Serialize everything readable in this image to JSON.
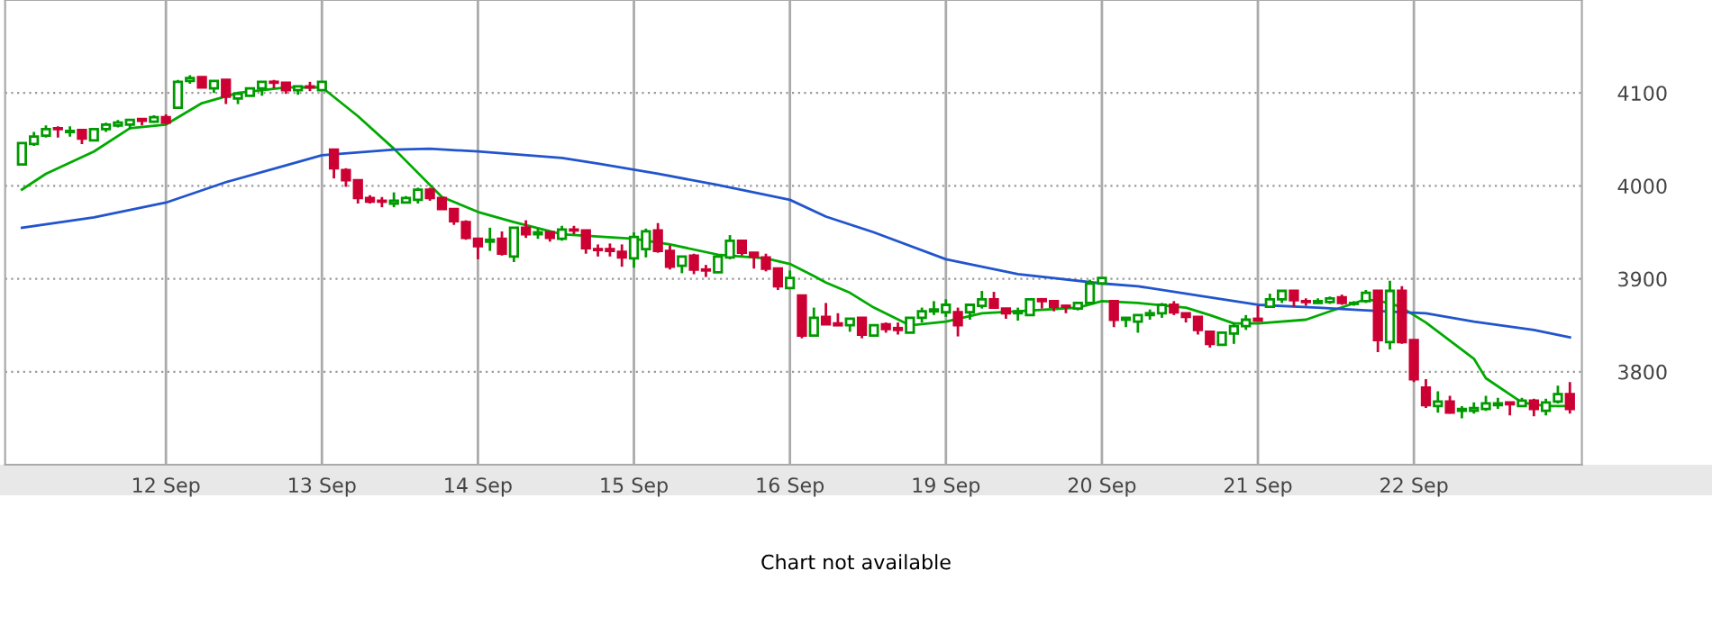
{
  "chart_data": {
    "type": "candlestick",
    "ylim": [
      3700,
      4200
    ],
    "categories": [
      null,
      null,
      null,
      null,
      null,
      null,
      null,
      null,
      null,
      null,
      null,
      null,
      "12 Sep",
      null,
      null,
      null,
      null,
      null,
      null,
      null,
      null,
      null,
      null,
      null,
      null,
      "13 Sep",
      null,
      null,
      null,
      null,
      null,
      null,
      null,
      null,
      null,
      null,
      null,
      null,
      "14 Sep",
      null,
      null,
      null,
      null,
      null,
      null,
      null,
      null,
      null,
      null,
      null,
      null,
      "15 Sep",
      null,
      null,
      null,
      null,
      null,
      null,
      null,
      null,
      null,
      null,
      null,
      null,
      "16 Sep",
      null,
      null,
      null,
      null,
      null,
      null,
      null,
      null,
      null,
      null,
      null,
      null,
      "19 Sep",
      null,
      null,
      null,
      null,
      null,
      null,
      null,
      null,
      null,
      null,
      null,
      null,
      "20 Sep",
      null,
      null,
      null,
      null,
      null,
      null,
      null,
      null,
      null,
      null,
      null,
      null,
      "21 Sep",
      null,
      null,
      null,
      null,
      null,
      null,
      null,
      null,
      null,
      null,
      null,
      null,
      "22 Sep",
      null,
      null,
      null,
      null,
      null,
      null,
      null,
      null,
      null,
      null,
      null,
      null,
      null
    ],
    "yticks": [
      3800,
      3900,
      4000,
      4100
    ],
    "grid": true,
    "annotations": [
      "Chart not available"
    ],
    "series": [
      {
        "type": "candlestick",
        "ohlc": [
          [
            4023,
            4047,
            4022,
            4046
          ],
          [
            4045,
            4058,
            4043,
            4053
          ],
          [
            4054,
            4065,
            4052,
            4061
          ],
          [
            4062,
            4064,
            4052,
            4061
          ],
          [
            4058,
            4064,
            4053,
            4059
          ],
          [
            4060,
            4060,
            4045,
            4051
          ],
          [
            4049,
            4061,
            4048,
            4061
          ],
          [
            4061,
            4068,
            4058,
            4066
          ],
          [
            4065,
            4071,
            4063,
            4068
          ],
          [
            4066,
            4071,
            4061,
            4071
          ],
          [
            4072,
            4072,
            4065,
            4070
          ],
          [
            4069,
            4076,
            4068,
            4074
          ],
          [
            4074,
            4077,
            4066,
            4068
          ],
          [
            4084,
            4114,
            4083,
            4112
          ],
          [
            4113,
            4119,
            4110,
            4116
          ],
          [
            4117,
            4117,
            4105,
            4106
          ],
          [
            4105,
            4113,
            4100,
            4113
          ],
          [
            4114,
            4114,
            4088,
            4096
          ],
          [
            4094,
            4100,
            4088,
            4099
          ],
          [
            4097,
            4105,
            4097,
            4105
          ],
          [
            4105,
            4112,
            4097,
            4112
          ],
          [
            4112,
            4114,
            4105,
            4111
          ],
          [
            4111,
            4111,
            4099,
            4103
          ],
          [
            4103,
            4107,
            4098,
            4107
          ],
          [
            4107,
            4112,
            4102,
            4106
          ],
          [
            4103,
            4112,
            4103,
            4112
          ],
          [
            4039,
            4039,
            4008,
            4019
          ],
          [
            4017,
            4019,
            3999,
            4006
          ],
          [
            4006,
            4006,
            3981,
            3987
          ],
          [
            3987,
            3990,
            3981,
            3983
          ],
          [
            3984,
            3988,
            3977,
            3983
          ],
          [
            3981,
            3993,
            3977,
            3984
          ],
          [
            3982,
            3989,
            3981,
            3987
          ],
          [
            3985,
            3998,
            3981,
            3996
          ],
          [
            3996,
            3998,
            3984,
            3987
          ],
          [
            3987,
            3987,
            3975,
            3975
          ],
          [
            3975,
            3975,
            3958,
            3962
          ],
          [
            3961,
            3963,
            3942,
            3944
          ],
          [
            3943,
            3944,
            3921,
            3935
          ],
          [
            3940,
            3955,
            3930,
            3942
          ],
          [
            3943,
            3951,
            3925,
            3927
          ],
          [
            3924,
            3955,
            3918,
            3955
          ],
          [
            3955,
            3963,
            3944,
            3948
          ],
          [
            3948,
            3954,
            3943,
            3950
          ],
          [
            3950,
            3950,
            3940,
            3944
          ],
          [
            3943,
            3957,
            3941,
            3953
          ],
          [
            3953,
            3957,
            3948,
            3952
          ],
          [
            3952,
            3952,
            3927,
            3933
          ],
          [
            3932,
            3937,
            3924,
            3931
          ],
          [
            3932,
            3938,
            3924,
            3930
          ],
          [
            3929,
            3937,
            3913,
            3923
          ],
          [
            3922,
            3950,
            3912,
            3945
          ],
          [
            3932,
            3954,
            3923,
            3951
          ],
          [
            3952,
            3960,
            3928,
            3930
          ],
          [
            3930,
            3936,
            3910,
            3913
          ],
          [
            3914,
            3924,
            3906,
            3924
          ],
          [
            3925,
            3927,
            3905,
            3910
          ],
          [
            3910,
            3915,
            3902,
            3909
          ],
          [
            3907,
            3926,
            3907,
            3924
          ],
          [
            3923,
            3947,
            3921,
            3941
          ],
          [
            3941,
            3941,
            3925,
            3928
          ],
          [
            3928,
            3928,
            3911,
            3924
          ],
          [
            3923,
            3927,
            3908,
            3911
          ],
          [
            3911,
            3911,
            3888,
            3892
          ],
          [
            3890,
            3909,
            3890,
            3901
          ],
          [
            3882,
            3882,
            3836,
            3839
          ],
          [
            3839,
            3869,
            3839,
            3858
          ],
          [
            3859,
            3874,
            3851,
            3851
          ],
          [
            3852,
            3863,
            3850,
            3850
          ],
          [
            3850,
            3857,
            3843,
            3857
          ],
          [
            3858,
            3858,
            3836,
            3840
          ],
          [
            3839,
            3850,
            3839,
            3850
          ],
          [
            3851,
            3853,
            3842,
            3846
          ],
          [
            3847,
            3853,
            3840,
            3845
          ],
          [
            3842,
            3858,
            3842,
            3858
          ],
          [
            3858,
            3869,
            3853,
            3865
          ],
          [
            3865,
            3876,
            3861,
            3867
          ],
          [
            3864,
            3878,
            3859,
            3872
          ],
          [
            3864,
            3869,
            3838,
            3850
          ],
          [
            3864,
            3872,
            3856,
            3872
          ],
          [
            3871,
            3887,
            3868,
            3878
          ],
          [
            3878,
            3886,
            3868,
            3869
          ],
          [
            3868,
            3868,
            3857,
            3863
          ],
          [
            3863,
            3869,
            3855,
            3865
          ],
          [
            3861,
            3878,
            3861,
            3878
          ],
          [
            3878,
            3878,
            3868,
            3876
          ],
          [
            3876,
            3876,
            3865,
            3870
          ],
          [
            3871,
            3872,
            3863,
            3870
          ],
          [
            3868,
            3874,
            3866,
            3874
          ],
          [
            3874,
            3899,
            3874,
            3895
          ],
          [
            3895,
            3901,
            3895,
            3901
          ],
          [
            3876,
            3876,
            3848,
            3856
          ],
          [
            3856,
            3859,
            3848,
            3858
          ],
          [
            3854,
            3861,
            3842,
            3861
          ],
          [
            3861,
            3867,
            3856,
            3863
          ],
          [
            3863,
            3874,
            3858,
            3872
          ],
          [
            3872,
            3876,
            3861,
            3864
          ],
          [
            3863,
            3863,
            3853,
            3859
          ],
          [
            3859,
            3859,
            3840,
            3845
          ],
          [
            3843,
            3843,
            3826,
            3830
          ],
          [
            3829,
            3842,
            3829,
            3842
          ],
          [
            3841,
            3853,
            3830,
            3849
          ],
          [
            3849,
            3861,
            3845,
            3856
          ],
          [
            3857,
            3871,
            3855,
            3855
          ],
          [
            3870,
            3884,
            3869,
            3878
          ],
          [
            3878,
            3888,
            3874,
            3887
          ],
          [
            3887,
            3887,
            3870,
            3877
          ],
          [
            3876,
            3879,
            3871,
            3875
          ],
          [
            3874,
            3879,
            3874,
            3876
          ],
          [
            3875,
            3881,
            3873,
            3879
          ],
          [
            3880,
            3883,
            3872,
            3874
          ],
          [
            3873,
            3876,
            3871,
            3874
          ],
          [
            3876,
            3888,
            3874,
            3885
          ],
          [
            3887,
            3888,
            3821,
            3834
          ],
          [
            3832,
            3898,
            3824,
            3887
          ],
          [
            3887,
            3892,
            3830,
            3832
          ],
          [
            3834,
            3834,
            3789,
            3792
          ],
          [
            3783,
            3792,
            3761,
            3764
          ],
          [
            3763,
            3779,
            3756,
            3768
          ],
          [
            3768,
            3774,
            3755,
            3756
          ],
          [
            3758,
            3763,
            3750,
            3760
          ],
          [
            3758,
            3767,
            3755,
            3761
          ],
          [
            3760,
            3774,
            3758,
            3766
          ],
          [
            3764,
            3772,
            3760,
            3766
          ],
          [
            3767,
            3767,
            3753,
            3765
          ],
          [
            3763,
            3772,
            3762,
            3769
          ],
          [
            3769,
            3771,
            3752,
            3760
          ],
          [
            3758,
            3771,
            3753,
            3767
          ],
          [
            3768,
            3785,
            3766,
            3776
          ],
          [
            3776,
            3789,
            3755,
            3760
          ]
        ],
        "colors": [
          "#009900",
          "#009900",
          "#009900",
          "#cc0033",
          "#009900",
          "#cc0033",
          "#009900",
          "#009900",
          "#009900",
          "#009900",
          "#cc0033",
          "#009900",
          "#cc0033",
          "#009900",
          "#009900",
          "#cc0033",
          "#009900",
          "#cc0033",
          "#009900",
          "#009900",
          "#009900",
          "#cc0033",
          "#cc0033",
          "#009900",
          "#cc0033",
          "#009900",
          "#cc0033",
          "#cc0033",
          "#cc0033",
          "#cc0033",
          "#cc0033",
          "#009900",
          "#009900",
          "#009900",
          "#cc0033",
          "#cc0033",
          "#cc0033",
          "#cc0033",
          "#cc0033",
          "#009900",
          "#cc0033",
          "#009900",
          "#cc0033",
          "#009900",
          "#cc0033",
          "#009900",
          "#cc0033",
          "#cc0033",
          "#cc0033",
          "#cc0033",
          "#cc0033",
          "#009900",
          "#009900",
          "#cc0033",
          "#cc0033",
          "#009900",
          "#cc0033",
          "#cc0033",
          "#009900",
          "#009900",
          "#cc0033",
          "#cc0033",
          "#cc0033",
          "#cc0033",
          "#009900",
          "#cc0033",
          "#009900",
          "#cc0033",
          "#cc0033",
          "#009900",
          "#cc0033",
          "#009900",
          "#cc0033",
          "#cc0033",
          "#009900",
          "#009900",
          "#009900",
          "#009900",
          "#cc0033",
          "#009900",
          "#009900",
          "#cc0033",
          "#cc0033",
          "#009900",
          "#009900",
          "#cc0033",
          "#cc0033",
          "#cc0033",
          "#009900",
          "#009900",
          "#009900",
          "#cc0033",
          "#009900",
          "#009900",
          "#009900",
          "#009900",
          "#cc0033",
          "#cc0033",
          "#cc0033",
          "#cc0033",
          "#009900",
          "#009900",
          "#009900",
          "#cc0033",
          "#009900",
          "#009900",
          "#cc0033",
          "#cc0033",
          "#009900",
          "#009900",
          "#cc0033",
          "#009900",
          "#009900",
          "#cc0033",
          "#009900",
          "#cc0033",
          "#cc0033",
          "#cc0033",
          "#009900",
          "#cc0033",
          "#009900",
          "#009900",
          "#009900",
          "#009900",
          "#cc0033",
          "#009900",
          "#cc0033",
          "#009900",
          "#009900",
          "#cc0033"
        ]
      },
      {
        "type": "line",
        "color": "#00aa00",
        "values": [
          3996,
          null,
          4013,
          null,
          null,
          null,
          4037,
          null,
          null,
          4062,
          null,
          null,
          4066,
          null,
          null,
          4089,
          null,
          null,
          4100,
          null,
          null,
          null,
          4106,
          null,
          null,
          4106,
          null,
          null,
          4075,
          null,
          null,
          4040,
          null,
          null,
          null,
          3988,
          null,
          null,
          3972,
          null,
          null,
          3961,
          null,
          null,
          null,
          3948,
          null,
          null,
          null,
          null,
          null,
          3943,
          null,
          null,
          3937,
          null,
          null,
          null,
          3926,
          null,
          null,
          null,
          3922,
          null,
          3916,
          null,
          3903,
          3896,
          null,
          3885,
          null,
          3869,
          null,
          null,
          3850,
          null,
          null,
          3854,
          null,
          null,
          3863,
          null,
          null,
          3865,
          null,
          null,
          null,
          null,
          3869,
          null,
          3876,
          null,
          null,
          3874,
          null,
          null,
          null,
          3869,
          null,
          3861,
          null,
          3852,
          null,
          3852,
          null,
          null,
          null,
          3856,
          null,
          3865,
          null,
          null,
          3878,
          null,
          3874,
          3869,
          null,
          3853,
          null,
          null,
          null,
          3814,
          3793,
          null,
          null,
          3767,
          null,
          3763,
          null,
          3763
        ]
      },
      {
        "type": "line",
        "color": "#2255cc",
        "values": [
          3955,
          null,
          null,
          null,
          null,
          null,
          3966,
          null,
          null,
          null,
          null,
          null,
          3982,
          null,
          null,
          null,
          null,
          4004,
          null,
          null,
          null,
          null,
          4022,
          null,
          null,
          4033,
          null,
          null,
          null,
          null,
          null,
          4039,
          null,
          null,
          4040,
          null,
          null,
          null,
          4037,
          null,
          null,
          null,
          null,
          null,
          null,
          4030,
          null,
          null,
          4024,
          null,
          null,
          null,
          null,
          4013,
          null,
          null,
          null,
          null,
          4001,
          null,
          null,
          null,
          null,
          null,
          3985,
          null,
          null,
          3967,
          null,
          null,
          null,
          3950,
          null,
          null,
          null,
          null,
          null,
          3921,
          null,
          null,
          null,
          null,
          null,
          3905,
          null,
          null,
          null,
          null,
          null,
          null,
          3895,
          null,
          null,
          3892,
          null,
          null,
          null,
          null,
          3882,
          null,
          null,
          null,
          null,
          3872,
          null,
          null,
          null,
          null,
          3869,
          null,
          null,
          null,
          3866,
          null,
          null,
          null,
          null,
          3863,
          null,
          null,
          null,
          3854,
          null,
          null,
          null,
          null,
          3845,
          null,
          null,
          3837
        ]
      }
    ]
  }
}
